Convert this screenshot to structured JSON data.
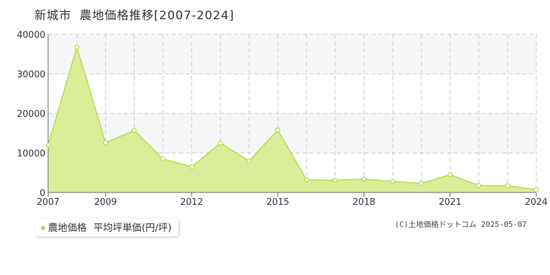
{
  "chart_data": {
    "type": "area",
    "title": "新城市",
    "subtitle": "農地価格推移[2007-2024]",
    "x": [
      2007,
      2008,
      2009,
      2010,
      2011,
      2012,
      2013,
      2014,
      2015,
      2016,
      2017,
      2018,
      2019,
      2020,
      2021,
      2022,
      2023,
      2024
    ],
    "x_tick_labels": [
      "2007",
      "2009",
      "2012",
      "2015",
      "2018",
      "2021",
      "2024"
    ],
    "series": [
      {
        "name": "農地価格 平均坪単価(円/坪)",
        "values": [
          12000,
          36800,
          12600,
          15700,
          8500,
          6500,
          12500,
          8000,
          15800,
          3200,
          3100,
          3400,
          2800,
          2300,
          4500,
          1800,
          1700,
          700
        ]
      }
    ],
    "ylim": [
      0,
      40000
    ],
    "y_ticks": [
      0,
      10000,
      20000,
      30000,
      40000
    ],
    "xlabel": "",
    "ylabel": "",
    "grid": true,
    "legend_position": "bottom-left",
    "colors": {
      "fill": "#d8ec92",
      "line": "#b9d84a",
      "marker_fill": "#ffffff",
      "grid": "#c8c8c8",
      "band": "#f6f6f8"
    }
  },
  "legend": {
    "series_label": "農地価格",
    "unit_label": "平均坪単価(円/坪)"
  },
  "copyright": "(C)土地価格ドットコム 2025-05-07"
}
